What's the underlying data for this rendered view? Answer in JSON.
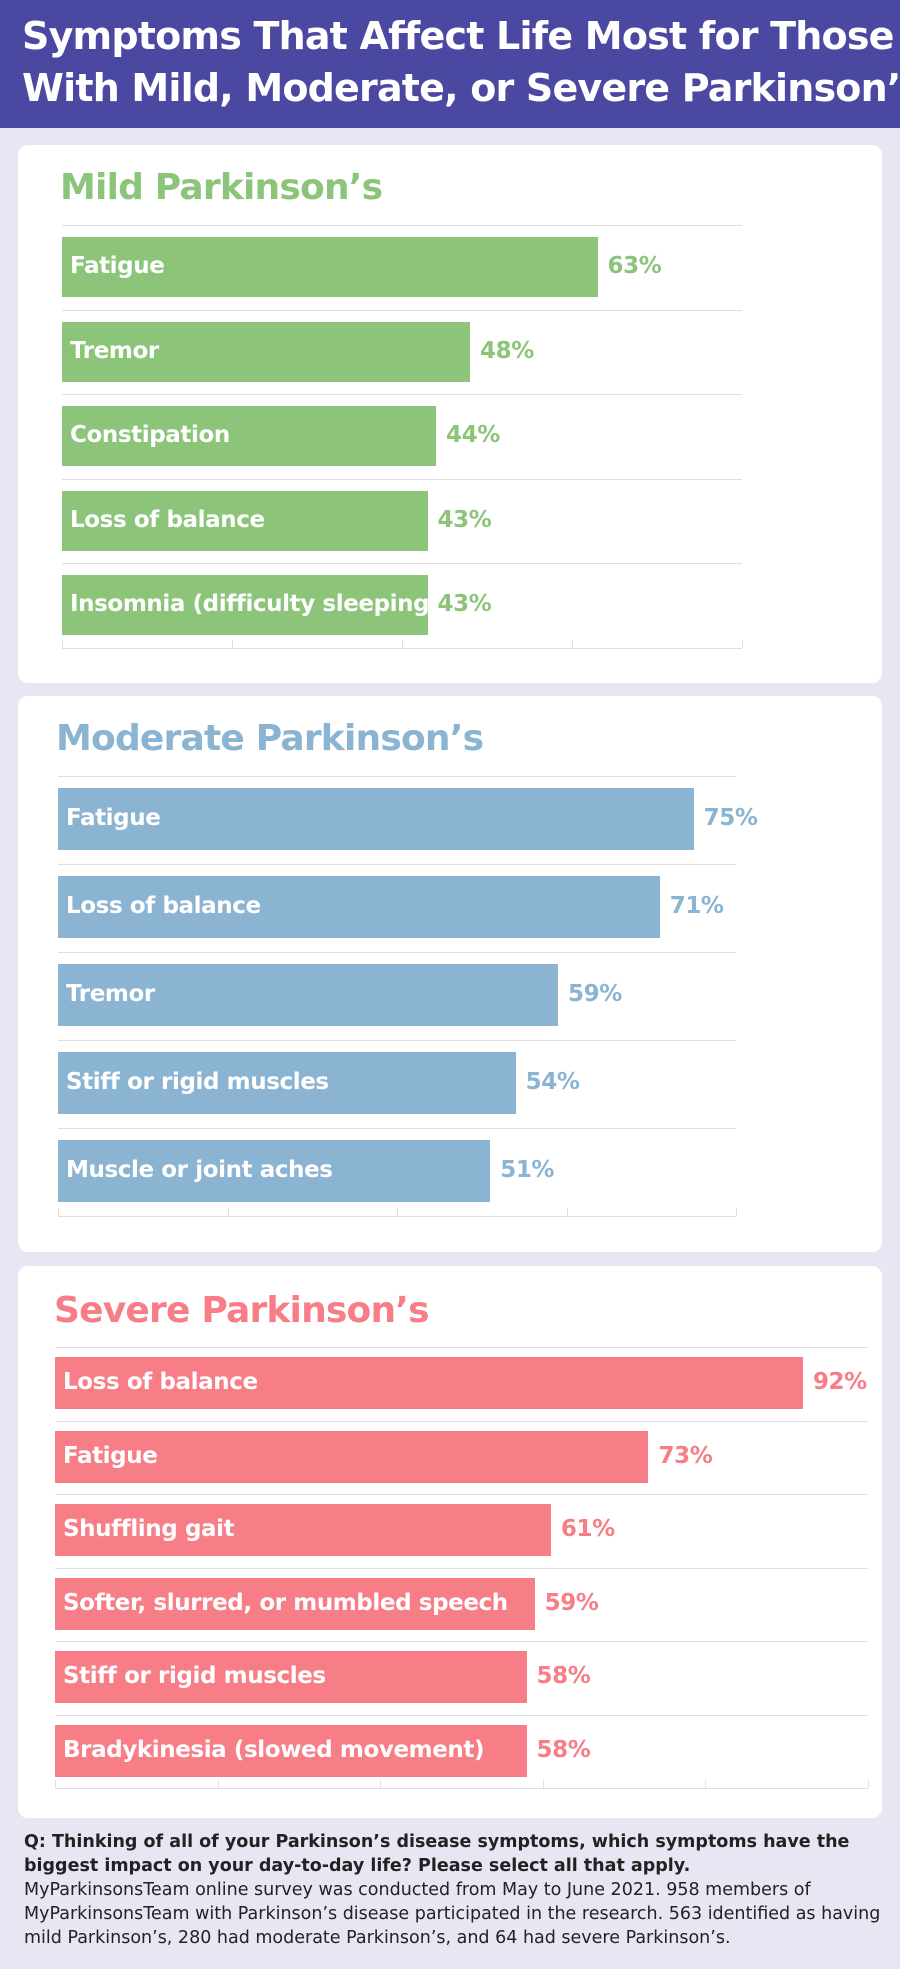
{
  "header": {
    "title_line1": "Symptoms That Affect Life Most for Those",
    "title_line2": "With Mild, Moderate, or Severe Parkinson’s",
    "background": "#4a48a0"
  },
  "chart_data": [
    {
      "type": "bar",
      "orientation": "horizontal",
      "title": "Mild Parkinson’s",
      "color": "#8cc57a",
      "categories": [
        "Fatigue",
        "Tremor",
        "Constipation",
        "Loss of balance",
        "Insomnia (difficulty sleeping)"
      ],
      "values": [
        63,
        48,
        44,
        43,
        43
      ],
      "value_labels": [
        "63%",
        "48%",
        "44%",
        "43%",
        "43%"
      ],
      "xlim": [
        0,
        80
      ],
      "grid": true
    },
    {
      "type": "bar",
      "orientation": "horizontal",
      "title": "Moderate Parkinson’s",
      "color": "#8bb3d2",
      "categories": [
        "Fatigue",
        "Loss of balance",
        "Tremor",
        "Stiff or rigid muscles",
        "Muscle or joint aches"
      ],
      "values": [
        75,
        71,
        59,
        54,
        51
      ],
      "value_labels": [
        "75%",
        "71%",
        "59%",
        "54%",
        "51%"
      ],
      "xlim": [
        0,
        80
      ],
      "grid": true
    },
    {
      "type": "bar",
      "orientation": "horizontal",
      "title": "Severe Parkinson’s",
      "color": "#f77d86",
      "categories": [
        "Loss of balance",
        "Fatigue",
        "Shuffling gait",
        "Softer, slurred, or mumbled speech",
        "Stiff or rigid muscles",
        "Bradykinesia (slowed movement)"
      ],
      "values": [
        92,
        73,
        61,
        59,
        58,
        58
      ],
      "value_labels": [
        "92%",
        "73%",
        "61%",
        "59%",
        "58%",
        "58%"
      ],
      "xlim": [
        0,
        100
      ],
      "grid": true
    }
  ],
  "footer": {
    "question": "Q: Thinking of all of your Parkinson’s disease symptoms, which symptoms have the biggest impact on your day-to-day life? Please select all that apply.",
    "note": "MyParkinsonsTeam online survey was conducted from May to June 2021. 958 members of MyParkinsonsTeam with Parkinson’s disease participated in the research. 563 identified as having mild Parkinson’s, 280 had moderate Parkinson’s, and 64 had severe Parkinson’s."
  }
}
